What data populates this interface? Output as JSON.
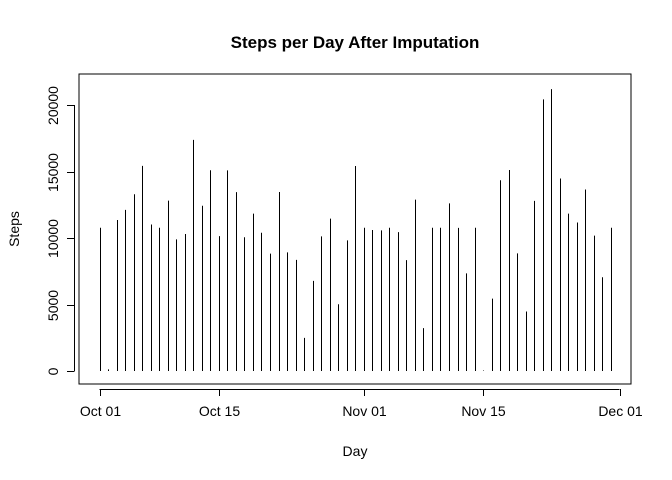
{
  "chart_data": {
    "type": "bar",
    "style": "histogram-type vertical lines",
    "title": "Steps per Day After Imputation",
    "xlabel": "Day",
    "ylabel": "Steps",
    "x_range": [
      "2012-10-01",
      "2012-12-01"
    ],
    "ylim": [
      0,
      21194
    ],
    "y_ticks": [
      0,
      5000,
      10000,
      15000,
      20000
    ],
    "x_ticks": [
      {
        "date": "2012-10-01",
        "label": "Oct 01"
      },
      {
        "date": "2012-10-15",
        "label": "Oct 15"
      },
      {
        "date": "2012-11-01",
        "label": "Nov 01"
      },
      {
        "date": "2012-11-15",
        "label": "Nov 15"
      },
      {
        "date": "2012-12-01",
        "label": "Dec 01"
      }
    ],
    "grid": false,
    "legend": "none",
    "line_color": "#000000",
    "dates": [
      "2012-10-01",
      "2012-10-02",
      "2012-10-03",
      "2012-10-04",
      "2012-10-05",
      "2012-10-06",
      "2012-10-07",
      "2012-10-08",
      "2012-10-09",
      "2012-10-10",
      "2012-10-11",
      "2012-10-12",
      "2012-10-13",
      "2012-10-14",
      "2012-10-15",
      "2012-10-16",
      "2012-10-17",
      "2012-10-18",
      "2012-10-19",
      "2012-10-20",
      "2012-10-21",
      "2012-10-22",
      "2012-10-23",
      "2012-10-24",
      "2012-10-25",
      "2012-10-26",
      "2012-10-27",
      "2012-10-28",
      "2012-10-29",
      "2012-10-30",
      "2012-10-31",
      "2012-11-01",
      "2012-11-02",
      "2012-11-03",
      "2012-11-04",
      "2012-11-05",
      "2012-11-06",
      "2012-11-07",
      "2012-11-08",
      "2012-11-09",
      "2012-11-10",
      "2012-11-11",
      "2012-11-12",
      "2012-11-13",
      "2012-11-14",
      "2012-11-15",
      "2012-11-16",
      "2012-11-17",
      "2012-11-18",
      "2012-11-19",
      "2012-11-20",
      "2012-11-21",
      "2012-11-22",
      "2012-11-23",
      "2012-11-24",
      "2012-11-25",
      "2012-11-26",
      "2012-11-27",
      "2012-11-28",
      "2012-11-29",
      "2012-11-30"
    ],
    "values": [
      10766,
      126,
      11352,
      12116,
      13294,
      15420,
      11015,
      10766,
      12811,
      9900,
      10304,
      17382,
      12426,
      15098,
      10139,
      15084,
      13452,
      10056,
      11829,
      10395,
      8821,
      13460,
      8918,
      8355,
      2492,
      6778,
      10119,
      11458,
      5018,
      9819,
      15414,
      10766,
      10600,
      10571,
      10766,
      10439,
      8334,
      12883,
      3219,
      10766,
      10766,
      12608,
      10765,
      7336,
      10766,
      41,
      5441,
      14339,
      15110,
      8841,
      4472,
      12787,
      20427,
      21194,
      14478,
      11834,
      11162,
      13646,
      10183,
      7047,
      10766
    ]
  }
}
